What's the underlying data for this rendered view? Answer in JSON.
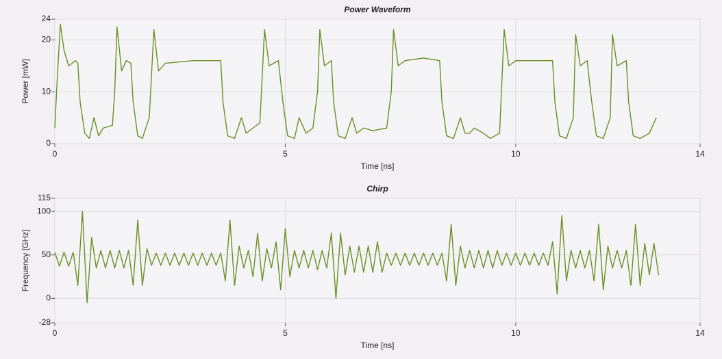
{
  "chart_data": [
    {
      "type": "line",
      "title": "Power Waveform",
      "xlabel": "Time [ns]",
      "ylabel": "Power [mW]",
      "color": "#6b8e23",
      "xlim": [
        0,
        14
      ],
      "xticks": [
        0,
        5,
        10,
        14
      ],
      "ylim": [
        0,
        24
      ],
      "yticks": [
        0,
        10,
        20,
        24
      ],
      "grid": true,
      "x": [
        0,
        0.05,
        0.12,
        0.2,
        0.3,
        0.45,
        0.5,
        0.55,
        0.65,
        0.75,
        0.85,
        0.95,
        1.05,
        1.25,
        1.3,
        1.35,
        1.45,
        1.55,
        1.65,
        1.7,
        1.8,
        1.9,
        2.05,
        2.15,
        2.25,
        2.4,
        3.0,
        3.6,
        3.65,
        3.75,
        3.9,
        4.05,
        4.15,
        4.3,
        4.45,
        4.55,
        4.65,
        4.85,
        4.95,
        5.05,
        5.2,
        5.3,
        5.45,
        5.6,
        5.7,
        5.75,
        5.85,
        6.0,
        6.05,
        6.15,
        6.3,
        6.45,
        6.55,
        6.7,
        6.9,
        7.2,
        7.3,
        7.35,
        7.45,
        7.6,
        8.0,
        8.35,
        8.4,
        8.5,
        8.65,
        8.8,
        8.9,
        9.0,
        9.1,
        9.3,
        9.45,
        9.65,
        9.7,
        9.75,
        9.85,
        10.0,
        10.8,
        10.85,
        10.95,
        11.1,
        11.25,
        11.3,
        11.4,
        11.55,
        11.65,
        11.75,
        11.9,
        12.05,
        12.1,
        12.2,
        12.4,
        12.45,
        12.55,
        12.7,
        12.9,
        13.05
      ],
      "values": [
        3,
        12,
        23,
        18,
        15,
        16,
        15.5,
        8,
        2,
        1,
        5,
        1.5,
        3,
        3.5,
        10,
        22.5,
        14,
        16,
        15.5,
        8,
        1.5,
        1,
        5,
        22,
        14,
        15.5,
        16,
        16,
        8,
        1.5,
        1,
        5,
        2,
        3,
        4,
        22,
        15,
        16,
        8,
        1.5,
        1,
        5,
        2,
        3,
        10,
        22,
        15,
        16,
        8,
        1.5,
        1,
        5,
        2,
        3,
        2.5,
        3,
        10,
        22,
        15,
        16,
        16.5,
        16,
        8,
        1.5,
        1,
        5,
        2,
        2,
        3,
        2,
        1,
        2,
        12,
        22,
        15,
        16,
        16,
        8,
        1.5,
        1,
        5,
        21,
        15,
        16,
        8,
        1.5,
        1,
        5,
        21,
        15,
        16,
        8,
        1.5,
        1,
        2,
        5
      ]
    },
    {
      "type": "line",
      "title": "Chirp",
      "xlabel": "Time [ns]",
      "ylabel": "Frequency [GHz]",
      "color": "#6b8e23",
      "xlim": [
        0,
        14
      ],
      "xticks": [
        0,
        5,
        10,
        14
      ],
      "ylim": [
        -28,
        115
      ],
      "yticks": [
        -28,
        0,
        50,
        100,
        115
      ],
      "grid": true,
      "x": [
        0,
        0.1,
        0.2,
        0.3,
        0.4,
        0.5,
        0.6,
        0.7,
        0.8,
        0.9,
        1.0,
        1.1,
        1.2,
        1.3,
        1.4,
        1.5,
        1.6,
        1.7,
        1.8,
        1.9,
        2.0,
        2.1,
        2.2,
        2.3,
        2.4,
        2.5,
        2.6,
        2.7,
        2.8,
        2.9,
        3.0,
        3.1,
        3.2,
        3.3,
        3.4,
        3.5,
        3.6,
        3.7,
        3.8,
        3.9,
        4.0,
        4.1,
        4.2,
        4.3,
        4.4,
        4.5,
        4.6,
        4.7,
        4.8,
        4.9,
        5.0,
        5.1,
        5.2,
        5.3,
        5.4,
        5.5,
        5.6,
        5.7,
        5.8,
        5.9,
        6.0,
        6.1,
        6.2,
        6.3,
        6.4,
        6.5,
        6.6,
        6.7,
        6.8,
        6.9,
        7.0,
        7.1,
        7.2,
        7.3,
        7.4,
        7.5,
        7.6,
        7.7,
        7.8,
        7.9,
        8.0,
        8.1,
        8.2,
        8.3,
        8.4,
        8.5,
        8.6,
        8.7,
        8.8,
        8.9,
        9.0,
        9.1,
        9.2,
        9.3,
        9.4,
        9.5,
        9.6,
        9.7,
        9.8,
        9.9,
        10.0,
        10.1,
        10.2,
        10.3,
        10.4,
        10.5,
        10.6,
        10.7,
        10.8,
        10.9,
        11.0,
        11.1,
        11.2,
        11.3,
        11.4,
        11.5,
        11.6,
        11.7,
        11.8,
        11.9,
        12.0,
        12.1,
        12.2,
        12.3,
        12.4,
        12.5,
        12.6,
        12.7,
        12.8,
        12.9,
        13.0,
        13.1
      ],
      "values": [
        53,
        37,
        53,
        37,
        53,
        15,
        100,
        -5,
        70,
        35,
        55,
        35,
        55,
        35,
        55,
        35,
        55,
        15,
        90,
        15,
        57,
        38,
        52,
        38,
        52,
        38,
        52,
        38,
        52,
        38,
        52,
        38,
        52,
        38,
        52,
        38,
        52,
        20,
        90,
        15,
        60,
        35,
        55,
        25,
        75,
        20,
        57,
        35,
        65,
        10,
        80,
        25,
        55,
        35,
        55,
        35,
        55,
        33,
        55,
        35,
        75,
        0,
        75,
        27,
        60,
        30,
        60,
        30,
        60,
        30,
        65,
        30,
        52,
        38,
        52,
        38,
        52,
        38,
        52,
        38,
        52,
        38,
        52,
        38,
        52,
        20,
        85,
        15,
        60,
        35,
        55,
        35,
        55,
        35,
        55,
        35,
        55,
        38,
        52,
        38,
        52,
        38,
        52,
        38,
        52,
        38,
        52,
        38,
        65,
        5,
        95,
        20,
        55,
        35,
        55,
        35,
        55,
        20,
        85,
        10,
        60,
        35,
        55,
        35,
        55,
        15,
        85,
        15,
        63,
        27,
        63,
        27
      ]
    }
  ]
}
